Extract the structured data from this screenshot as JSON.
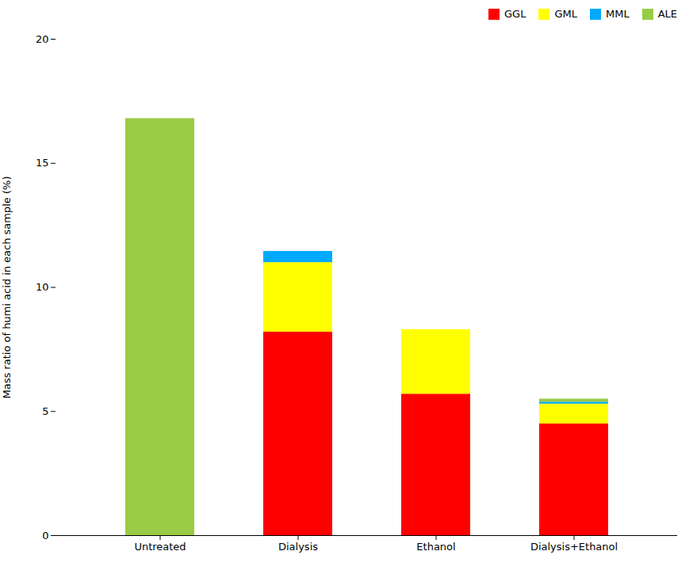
{
  "chart_data": {
    "type": "bar",
    "stacked": true,
    "categories": [
      "Untreated",
      "Dialysis",
      "Ethanol",
      "Dialysis+Ethanol"
    ],
    "series": [
      {
        "name": "GGL",
        "color": "#ff0000",
        "values": [
          0,
          8.2,
          5.7,
          4.5
        ]
      },
      {
        "name": "GML",
        "color": "#ffff00",
        "values": [
          0,
          2.8,
          2.6,
          0.8
        ]
      },
      {
        "name": "MML",
        "color": "#00aaff",
        "values": [
          0,
          0.45,
          0,
          0.08
        ]
      },
      {
        "name": "ALE",
        "color": "#99cc44",
        "values": [
          16.8,
          0,
          0,
          0.12
        ]
      }
    ],
    "ylabel": "Mass ratio of humi acid in each sample (%)",
    "ylim": [
      0,
      20
    ],
    "yticks": [
      0,
      5,
      10,
      15,
      20
    ],
    "grid": false,
    "legend": "upper right"
  }
}
